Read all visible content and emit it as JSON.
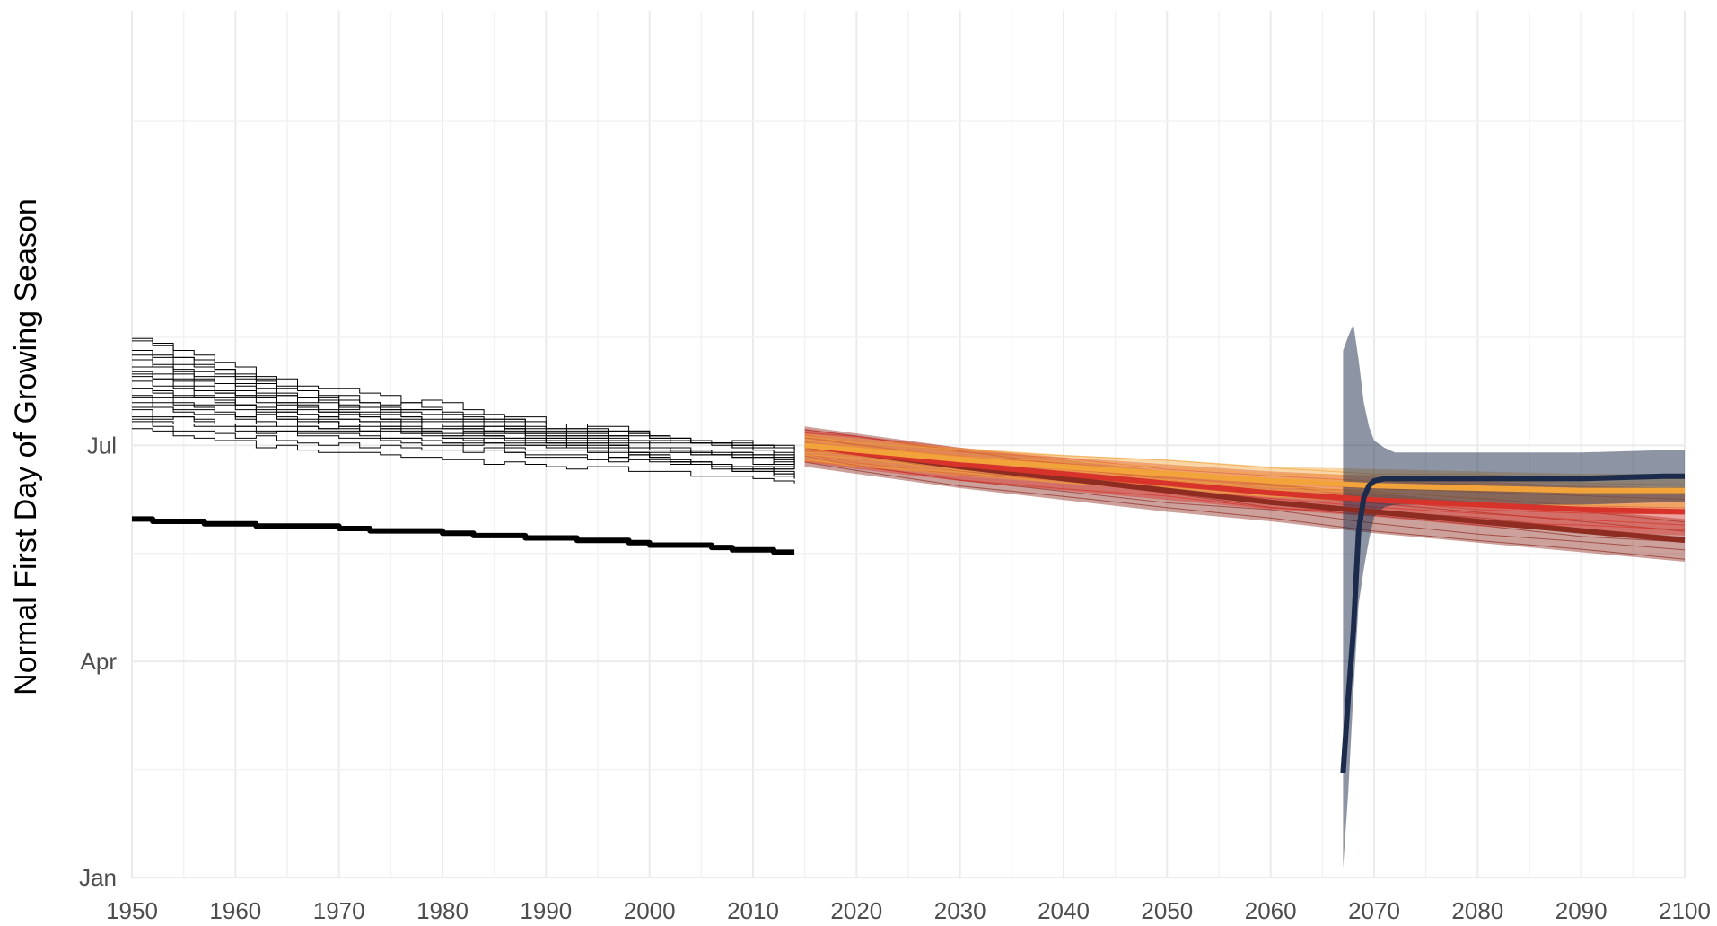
{
  "chart_data": {
    "type": "line",
    "title": "",
    "xlabel": "",
    "ylabel": "Normal First Day of Growing Season",
    "xlim": [
      1950,
      2100
    ],
    "ylim": [
      0,
      365
    ],
    "grid": true,
    "legend": "none",
    "x_ticks": [
      1950,
      1960,
      1970,
      1980,
      1990,
      2000,
      2010,
      2020,
      2030,
      2040,
      2050,
      2060,
      2070,
      2080,
      2090,
      2100
    ],
    "x_tick_labels": [
      "1950",
      "1960",
      "1970",
      "1980",
      "1990",
      "2000",
      "2010",
      "2020",
      "2030",
      "2040",
      "2050",
      "2060",
      "2070",
      "2080",
      "2090",
      "2100"
    ],
    "y_ticks": [
      0,
      91,
      182
    ],
    "y_tick_labels": [
      "Jan",
      "Apr",
      "Jul"
    ],
    "historical": {
      "color": "#000000",
      "ensemble_start_range": [
        189,
        227
      ],
      "ensemble_end_range": [
        167,
        182
      ],
      "ensemble_count": 22,
      "observed": {
        "x": [
          1950,
          1952,
          1955,
          1957,
          1960,
          1962,
          1965,
          1968,
          1970,
          1973,
          1976,
          1978,
          1980,
          1983,
          1986,
          1988,
          1990,
          1993,
          1996,
          1998,
          2000,
          2003,
          2006,
          2008,
          2010,
          2012,
          2014
        ],
        "y": [
          151,
          150,
          150,
          149,
          149,
          148,
          148,
          148,
          147,
          146,
          146,
          146,
          145,
          144,
          144,
          143,
          143,
          142,
          142,
          141,
          140,
          140,
          139,
          138,
          138,
          137,
          137
        ]
      }
    },
    "series": [
      {
        "color": "#8e2c22",
        "x": [
          2015,
          2020,
          2030,
          2040,
          2050,
          2060,
          2070,
          2080,
          2090,
          2100
        ],
        "y": [
          182,
          179,
          173,
          168,
          163,
          158,
          154,
          150,
          146,
          142
        ],
        "band_upper": [
          190,
          187,
          181,
          176,
          171,
          166,
          162,
          158,
          155,
          151
        ],
        "band_lower": [
          173,
          170,
          164,
          159,
          154,
          150,
          145,
          141,
          137,
          133
        ]
      },
      {
        "color": "#d7332a",
        "x": [
          2015,
          2020,
          2030,
          2040,
          2050,
          2060,
          2070,
          2080,
          2090,
          2100
        ],
        "y": [
          182,
          179,
          174,
          170,
          166,
          162,
          159,
          157,
          155,
          154
        ],
        "band_upper": [
          189,
          186,
          181,
          177,
          174,
          171,
          169,
          167,
          165,
          164
        ],
        "band_lower": [
          175,
          172,
          167,
          163,
          159,
          155,
          152,
          148,
          146,
          144
        ]
      },
      {
        "color": "#f2a33a",
        "x": [
          2015,
          2020,
          2030,
          2040,
          2050,
          2060,
          2070,
          2080,
          2090,
          2100
        ],
        "y": [
          182,
          180,
          176,
          173,
          170,
          167,
          165,
          164,
          163,
          163
        ],
        "band_upper": [
          187,
          185,
          181,
          178,
          176,
          173,
          172,
          171,
          170,
          170
        ],
        "band_lower": [
          175,
          173,
          169,
          166,
          163,
          160,
          158,
          156,
          155,
          155
        ]
      },
      {
        "color": "#1c2b4c",
        "x": [
          2067,
          2067.5,
          2068,
          2068.5,
          2069,
          2069.5,
          2070,
          2071,
          2072,
          2080,
          2090,
          2098,
          2100
        ],
        "y": [
          44,
          76,
          104,
          146,
          160,
          165,
          167,
          168,
          168,
          168,
          168,
          169,
          169
        ],
        "band_upper": [
          222,
          228,
          233,
          218,
          200,
          190,
          184,
          181,
          179,
          179,
          179,
          180,
          180
        ],
        "band_lower": [
          4,
          36,
          78,
          115,
          130,
          142,
          152,
          156,
          157,
          157,
          157,
          158,
          158
        ]
      }
    ]
  }
}
